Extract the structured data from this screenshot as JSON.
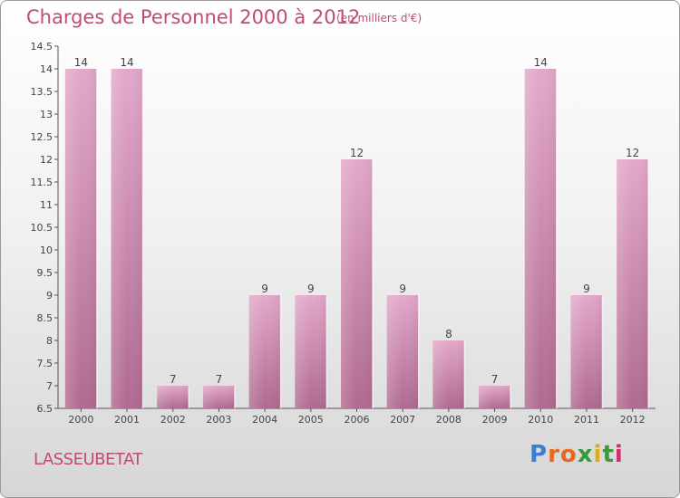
{
  "header": {
    "title": "Charges de Personnel 2000 à 2012",
    "subtitle": "(en milliers d'€)"
  },
  "footer": {
    "commune": "LASSEUBETAT",
    "logo_text": "Proxiti"
  },
  "colors": {
    "accent": "#c04d6d",
    "bar_top": "#e3a8ca",
    "bar_bottom": "#b06a92",
    "logo": [
      "#3a7fd0",
      "#e56a1f",
      "#e56a1f",
      "#3a9a3a",
      "#e0aa10",
      "#3a9a3a",
      "#d0306a"
    ]
  },
  "chart_data": {
    "type": "bar",
    "title": "Charges de Personnel 2000 à 2012",
    "subtitle": "(en milliers d'€)",
    "xlabel": "",
    "ylabel": "",
    "categories": [
      "2000",
      "2001",
      "2002",
      "2003",
      "2004",
      "2005",
      "2006",
      "2007",
      "2008",
      "2009",
      "2010",
      "2011",
      "2012"
    ],
    "values": [
      14,
      14,
      7,
      7,
      9,
      9,
      12,
      9,
      8,
      7,
      14,
      9,
      12
    ],
    "data_labels": [
      "14",
      "14",
      "7",
      "7",
      "9",
      "9",
      "12",
      "9",
      "8",
      "7",
      "14",
      "9",
      "12"
    ],
    "ylim": [
      6.5,
      14.5
    ],
    "yticks": [
      6.5,
      7,
      7.5,
      8,
      8.5,
      9,
      9.5,
      10,
      10.5,
      11,
      11.5,
      12,
      12.5,
      13,
      13.5,
      14,
      14.5
    ],
    "ytick_labels": [
      "6.5",
      "7",
      "7.5",
      "8",
      "8.5",
      "9",
      "9.5",
      "10",
      "10.5",
      "11",
      "11.5",
      "12",
      "12.5",
      "13",
      "13.5",
      "14",
      "14.5"
    ],
    "grid": false,
    "legend": "none"
  }
}
